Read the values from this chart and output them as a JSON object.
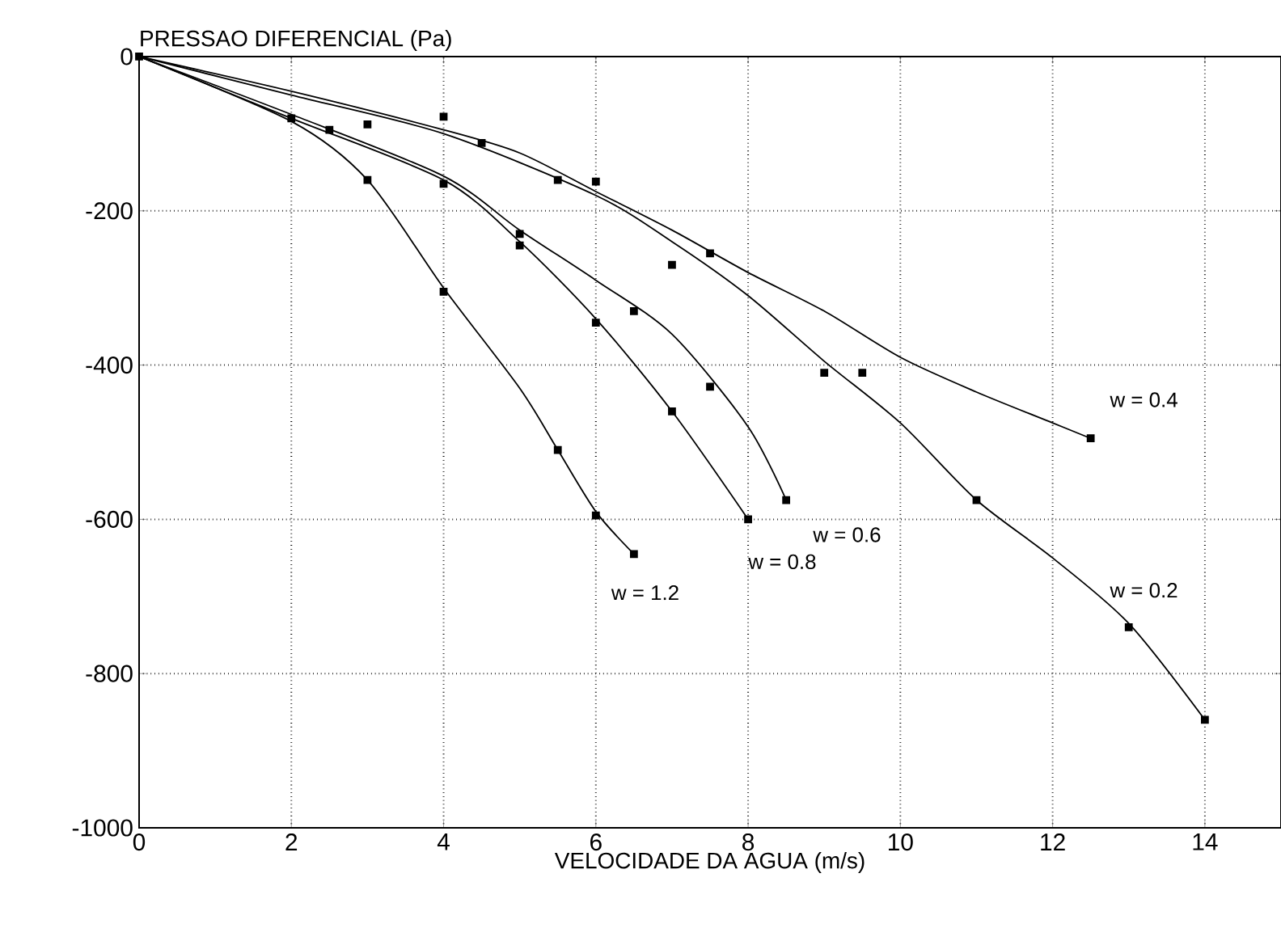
{
  "chart_data": {
    "type": "line",
    "xlabel": "VELOCIDADE DA AGUA (m/s)",
    "ylabel": "PRESSAO DIFERENCIAL (Pa)",
    "xlim": [
      0,
      15
    ],
    "xticks": [
      0,
      2,
      4,
      6,
      8,
      10,
      12,
      14
    ],
    "ylim": [
      -1000,
      0
    ],
    "yticks": [
      -1000,
      -800,
      -600,
      -400,
      -200,
      0
    ],
    "grid": true,
    "series": [
      {
        "type": "scatter",
        "color": "#000000",
        "marker": "square",
        "x": [
          0,
          2,
          2.5,
          3,
          3,
          4,
          4,
          4,
          4.5,
          5,
          5,
          5.5,
          5.5,
          6,
          6,
          6,
          6.5,
          6.5,
          7,
          7,
          7.5,
          7.5,
          8,
          8.5,
          9,
          9.5,
          11,
          12.5,
          13,
          14
        ],
        "values": [
          0,
          -80,
          -95,
          -88,
          -160,
          -78,
          -165,
          -305,
          -112,
          -230,
          -245,
          -160,
          -510,
          -162,
          -345,
          -595,
          -330,
          -645,
          -270,
          -460,
          -255,
          -428,
          -600,
          -575,
          -410,
          -410,
          -575,
          -495,
          -740,
          -860
        ]
      },
      {
        "name": "w = 1.2",
        "color": "#000000",
        "marker": "none",
        "x": [
          0,
          2,
          3,
          4,
          5,
          5.5,
          6,
          6.5
        ],
        "values": [
          0,
          -84,
          -160,
          -300,
          -430,
          -510,
          -590,
          -645
        ]
      },
      {
        "name": "w = 0.8",
        "color": "#000000",
        "marker": "none",
        "x": [
          0,
          2,
          4,
          5,
          6,
          7,
          8
        ],
        "values": [
          0,
          -80,
          -160,
          -240,
          -340,
          -460,
          -600
        ]
      },
      {
        "name": "w = 0.6",
        "color": "#000000",
        "marker": "none",
        "x": [
          0,
          2,
          4,
          5,
          6,
          7,
          8,
          8.5
        ],
        "values": [
          0,
          -75,
          -155,
          -225,
          -290,
          -360,
          -480,
          -575
        ]
      },
      {
        "name": "w = 0.4",
        "color": "#000000",
        "marker": "none",
        "x": [
          0,
          2,
          4,
          5,
          6,
          7,
          8,
          9,
          10,
          11,
          12,
          12.5
        ],
        "values": [
          0,
          -45,
          -95,
          -125,
          -175,
          -225,
          -280,
          -330,
          -390,
          -435,
          -475,
          -495
        ]
      },
      {
        "name": "w = 0.2",
        "color": "#000000",
        "marker": "none",
        "x": [
          0,
          2,
          4,
          6,
          7,
          8,
          9,
          10,
          11,
          12,
          13,
          14
        ],
        "values": [
          0,
          -50,
          -100,
          -180,
          -240,
          -310,
          -395,
          -475,
          -575,
          -650,
          -735,
          -860
        ]
      }
    ]
  }
}
